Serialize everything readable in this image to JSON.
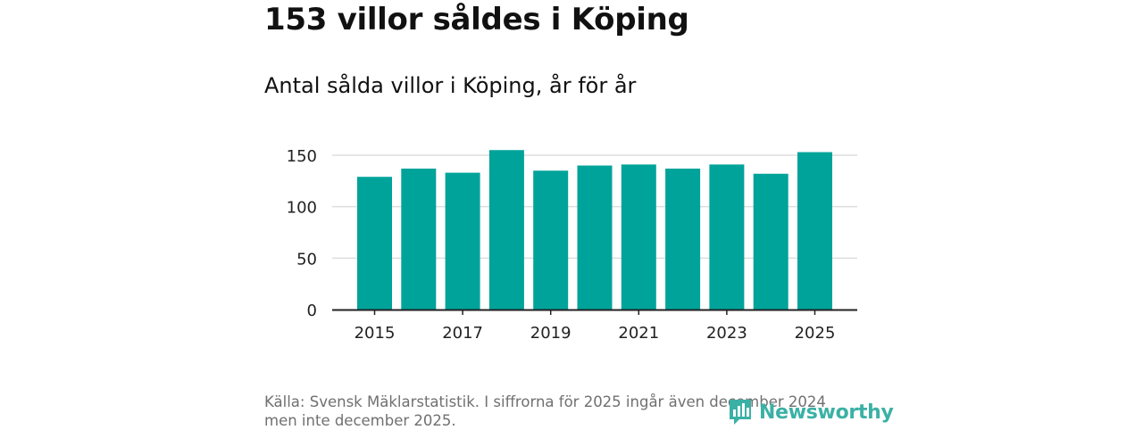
{
  "title": "153 villor såldes i Köping",
  "subtitle": "Antal sålda villor i Köping, år för år",
  "source": "Källa: Svensk Mäklarstatistik. I siffrorna för 2025 ingår även december 2024 men inte december 2025.",
  "brand": {
    "name": "Newsworthy",
    "icon": "newsworthy-logo-icon",
    "color": "#3bb1a5"
  },
  "colors": {
    "bar": "#00a39a",
    "grid": "#dddddd",
    "axis": "#222222"
  },
  "chart_data": {
    "type": "bar",
    "title": "153 villor såldes i Köping",
    "subtitle": "Antal sålda villor i Köping, år för år",
    "xlabel": "",
    "ylabel": "",
    "categories": [
      "2015",
      "2016",
      "2017",
      "2018",
      "2019",
      "2020",
      "2021",
      "2022",
      "2023",
      "2024",
      "2025"
    ],
    "values": [
      129,
      137,
      133,
      155,
      135,
      140,
      141,
      137,
      141,
      132,
      153
    ],
    "x_tick_labels": [
      "2015",
      "2017",
      "2019",
      "2021",
      "2023",
      "2025"
    ],
    "y_ticks": [
      0,
      50,
      100,
      150
    ],
    "ylim": [
      0,
      150
    ],
    "grid": true
  }
}
